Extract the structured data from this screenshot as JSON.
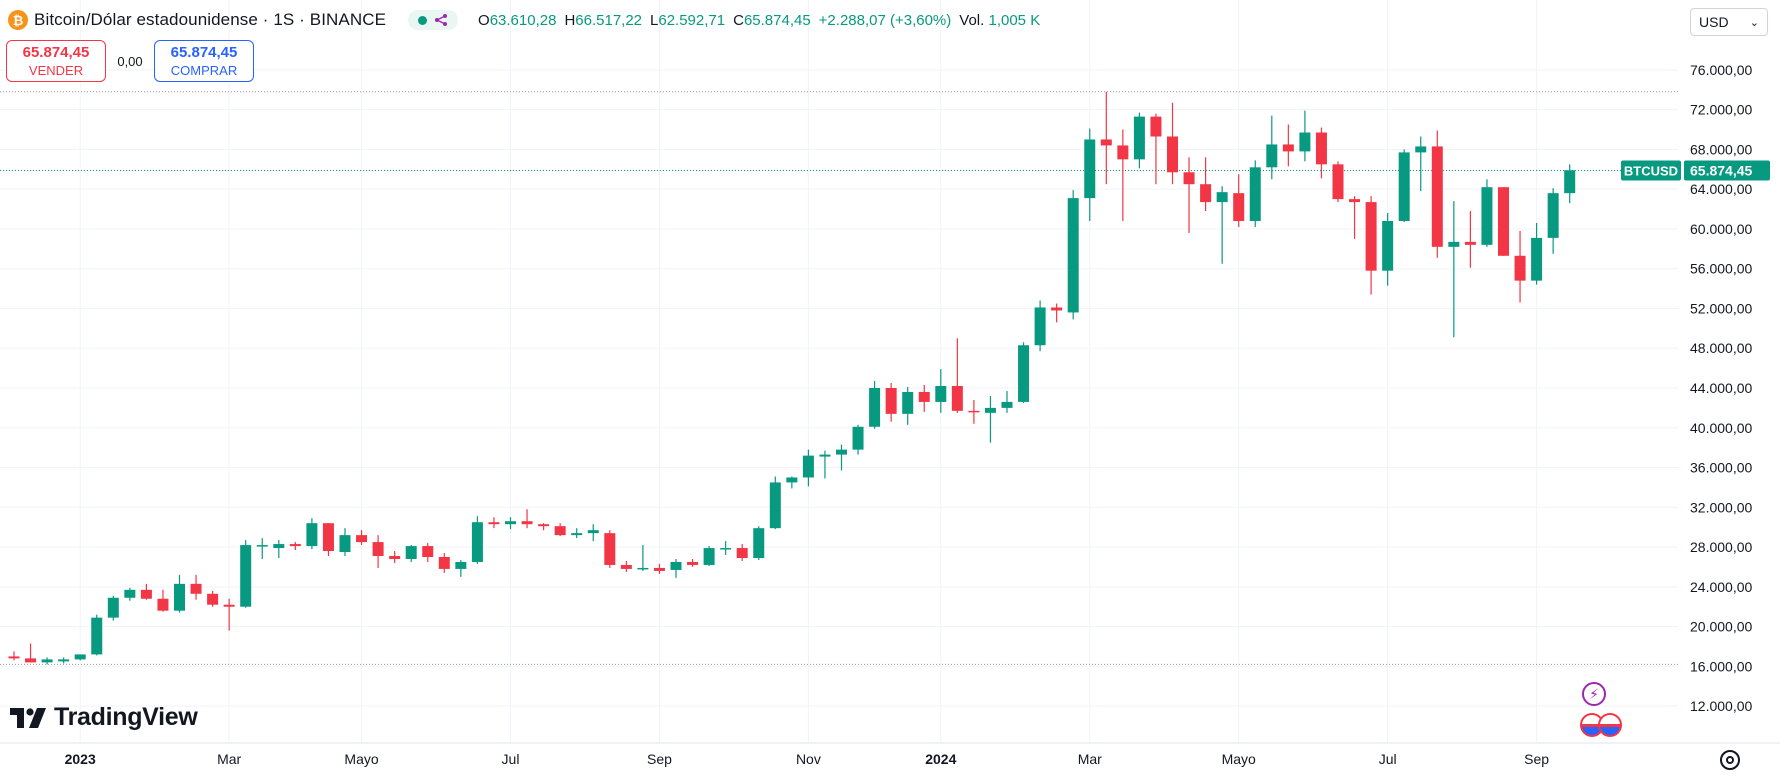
{
  "header": {
    "symbol_title": "Bitcoin/Dólar estadounidense · 1S · BINANCE",
    "btc_glyph": "₿",
    "ohlc": [
      {
        "key": "O",
        "value": "63.610,28"
      },
      {
        "key": "H",
        "value": "66.517,22"
      },
      {
        "key": "L",
        "value": "62.592,71"
      },
      {
        "key": "C",
        "value": "65.874,45"
      },
      {
        "key": "",
        "value": "+2.288,07 (+3,60%)"
      },
      {
        "key": "Vol.",
        "value": "1,005 K"
      }
    ]
  },
  "trade": {
    "sell_price": "65.874,45",
    "sell_label": "VENDER",
    "spread": "0,00",
    "buy_price": "65.874,45",
    "buy_label": "COMPRAR"
  },
  "currency": {
    "value": "USD"
  },
  "logo": {
    "text": "TradingView"
  },
  "price_tag": {
    "symbol": "BTCUSD",
    "value": "65.874,45"
  },
  "colors": {
    "up": "#089981",
    "down": "#f23645",
    "grid": "#f0f3fa",
    "text": "#131722",
    "accent": "#2962ff"
  },
  "chart_data": {
    "type": "candlestick",
    "title": "Bitcoin/Dólar estadounidense · 1S · BINANCE",
    "xlabel": "",
    "ylabel": "",
    "ylim": [
      10000,
      78000
    ],
    "y_ticks": [
      12000,
      16000,
      20000,
      24000,
      28000,
      32000,
      36000,
      40000,
      44000,
      48000,
      52000,
      56000,
      60000,
      64000,
      68000,
      72000,
      76000
    ],
    "y_tick_labels": [
      "12.000,00",
      "16.000,00",
      "20.000,00",
      "24.000,00",
      "28.000,00",
      "32.000,00",
      "36.000,00",
      "40.000,00",
      "44.000,00",
      "48.000,00",
      "52.000,00",
      "56.000,00",
      "60.000,00",
      "64.000,00",
      "68.000,00",
      "72.000,00",
      "76.000,00"
    ],
    "x_tick_labels": [
      {
        "label": "2023",
        "index": 4
      },
      {
        "label": "Mar",
        "index": 13
      },
      {
        "label": "Mayo",
        "index": 21
      },
      {
        "label": "Jul",
        "index": 30
      },
      {
        "label": "Sep",
        "index": 39
      },
      {
        "label": "Nov",
        "index": 48
      },
      {
        "label": "2024",
        "index": 56
      },
      {
        "label": "Mar",
        "index": 65
      },
      {
        "label": "Mayo",
        "index": 74
      },
      {
        "label": "Jul",
        "index": 83
      },
      {
        "label": "Sep",
        "index": 92
      }
    ],
    "reference_lines": [
      16200,
      73800
    ],
    "last_price": 65874.45,
    "candles": [
      {
        "o": 17000,
        "h": 17500,
        "l": 16600,
        "c": 16800
      },
      {
        "o": 16800,
        "h": 18300,
        "l": 16400,
        "c": 16400
      },
      {
        "o": 16400,
        "h": 16900,
        "l": 16200,
        "c": 16700
      },
      {
        "o": 16500,
        "h": 16900,
        "l": 16300,
        "c": 16700
      },
      {
        "o": 16700,
        "h": 17200,
        "l": 16600,
        "c": 17200
      },
      {
        "o": 17200,
        "h": 21200,
        "l": 17100,
        "c": 20900
      },
      {
        "o": 20900,
        "h": 23100,
        "l": 20600,
        "c": 22900
      },
      {
        "o": 22900,
        "h": 23900,
        "l": 22600,
        "c": 23700
      },
      {
        "o": 23700,
        "h": 24300,
        "l": 22700,
        "c": 22800
      },
      {
        "o": 22800,
        "h": 23700,
        "l": 21500,
        "c": 21600
      },
      {
        "o": 21600,
        "h": 25200,
        "l": 21400,
        "c": 24300
      },
      {
        "o": 24300,
        "h": 25200,
        "l": 22700,
        "c": 23300
      },
      {
        "o": 23300,
        "h": 23600,
        "l": 22000,
        "c": 22200
      },
      {
        "o": 22200,
        "h": 22800,
        "l": 19600,
        "c": 22000
      },
      {
        "o": 22000,
        "h": 28700,
        "l": 21900,
        "c": 28200
      },
      {
        "o": 28200,
        "h": 28900,
        "l": 26800,
        "c": 28200
      },
      {
        "o": 27900,
        "h": 28700,
        "l": 26900,
        "c": 28300
      },
      {
        "o": 28300,
        "h": 28500,
        "l": 27700,
        "c": 28100
      },
      {
        "o": 28100,
        "h": 30900,
        "l": 27800,
        "c": 30400
      },
      {
        "o": 30400,
        "h": 30400,
        "l": 27100,
        "c": 27600
      },
      {
        "o": 27500,
        "h": 29900,
        "l": 27100,
        "c": 29200
      },
      {
        "o": 29200,
        "h": 29700,
        "l": 28200,
        "c": 28500
      },
      {
        "o": 28500,
        "h": 29200,
        "l": 25900,
        "c": 27100
      },
      {
        "o": 27100,
        "h": 27600,
        "l": 26400,
        "c": 26800
      },
      {
        "o": 26800,
        "h": 28200,
        "l": 26500,
        "c": 28100
      },
      {
        "o": 28100,
        "h": 28400,
        "l": 26500,
        "c": 27000
      },
      {
        "o": 27000,
        "h": 27400,
        "l": 25400,
        "c": 25800
      },
      {
        "o": 25800,
        "h": 26700,
        "l": 25000,
        "c": 26500
      },
      {
        "o": 26500,
        "h": 31100,
        "l": 26300,
        "c": 30500
      },
      {
        "o": 30500,
        "h": 31000,
        "l": 29900,
        "c": 30300
      },
      {
        "o": 30300,
        "h": 31000,
        "l": 29800,
        "c": 30600
      },
      {
        "o": 30600,
        "h": 31800,
        "l": 29900,
        "c": 30300
      },
      {
        "o": 30300,
        "h": 30400,
        "l": 29700,
        "c": 30100
      },
      {
        "o": 30100,
        "h": 30400,
        "l": 29100,
        "c": 29200
      },
      {
        "o": 29200,
        "h": 29900,
        "l": 28900,
        "c": 29400
      },
      {
        "o": 29400,
        "h": 30300,
        "l": 28600,
        "c": 29700
      },
      {
        "o": 29400,
        "h": 29700,
        "l": 25900,
        "c": 26200
      },
      {
        "o": 26200,
        "h": 26600,
        "l": 25500,
        "c": 25800
      },
      {
        "o": 25900,
        "h": 28200,
        "l": 25600,
        "c": 25900
      },
      {
        "o": 25900,
        "h": 26300,
        "l": 25300,
        "c": 25600
      },
      {
        "o": 25700,
        "h": 26800,
        "l": 24900,
        "c": 26500
      },
      {
        "o": 26500,
        "h": 26800,
        "l": 26000,
        "c": 26200
      },
      {
        "o": 26200,
        "h": 28100,
        "l": 26100,
        "c": 27900
      },
      {
        "o": 27900,
        "h": 28600,
        "l": 27200,
        "c": 27900
      },
      {
        "o": 27900,
        "h": 28300,
        "l": 26600,
        "c": 26900
      },
      {
        "o": 26900,
        "h": 30100,
        "l": 26700,
        "c": 29900
      },
      {
        "o": 29900,
        "h": 35100,
        "l": 29800,
        "c": 34500
      },
      {
        "o": 34500,
        "h": 35100,
        "l": 33900,
        "c": 35000
      },
      {
        "o": 35000,
        "h": 37800,
        "l": 34100,
        "c": 37200
      },
      {
        "o": 37100,
        "h": 37700,
        "l": 34900,
        "c": 37300
      },
      {
        "o": 37300,
        "h": 38300,
        "l": 35700,
        "c": 37800
      },
      {
        "o": 37800,
        "h": 40300,
        "l": 37300,
        "c": 40100
      },
      {
        "o": 40100,
        "h": 44700,
        "l": 39900,
        "c": 44000
      },
      {
        "o": 44000,
        "h": 44500,
        "l": 40600,
        "c": 41400
      },
      {
        "o": 41400,
        "h": 44100,
        "l": 40300,
        "c": 43600
      },
      {
        "o": 43600,
        "h": 44300,
        "l": 41600,
        "c": 42600
      },
      {
        "o": 42600,
        "h": 45900,
        "l": 41500,
        "c": 44200
      },
      {
        "o": 44200,
        "h": 49000,
        "l": 41500,
        "c": 41700
      },
      {
        "o": 41700,
        "h": 42800,
        "l": 40400,
        "c": 41600
      },
      {
        "o": 41500,
        "h": 43200,
        "l": 38500,
        "c": 42000
      },
      {
        "o": 42000,
        "h": 43700,
        "l": 41500,
        "c": 42600
      },
      {
        "o": 42600,
        "h": 48600,
        "l": 42500,
        "c": 48300
      },
      {
        "o": 48300,
        "h": 52800,
        "l": 47700,
        "c": 52100
      },
      {
        "o": 52100,
        "h": 52500,
        "l": 50600,
        "c": 51800
      },
      {
        "o": 51600,
        "h": 63900,
        "l": 50900,
        "c": 63100
      },
      {
        "o": 63100,
        "h": 70100,
        "l": 60800,
        "c": 69000
      },
      {
        "o": 69000,
        "h": 73800,
        "l": 64500,
        "c": 68400
      },
      {
        "o": 68400,
        "h": 70000,
        "l": 60800,
        "c": 67000
      },
      {
        "o": 67000,
        "h": 71700,
        "l": 66100,
        "c": 71300
      },
      {
        "o": 71300,
        "h": 71600,
        "l": 64500,
        "c": 69300
      },
      {
        "o": 69300,
        "h": 72700,
        "l": 64500,
        "c": 65700
      },
      {
        "o": 65700,
        "h": 67200,
        "l": 59600,
        "c": 64500
      },
      {
        "o": 64500,
        "h": 67200,
        "l": 61800,
        "c": 62700
      },
      {
        "o": 62700,
        "h": 64300,
        "l": 56500,
        "c": 63700
      },
      {
        "o": 63600,
        "h": 65500,
        "l": 60200,
        "c": 60800
      },
      {
        "o": 60800,
        "h": 66900,
        "l": 60200,
        "c": 66200
      },
      {
        "o": 66200,
        "h": 71400,
        "l": 65000,
        "c": 68500
      },
      {
        "o": 68500,
        "h": 70500,
        "l": 66300,
        "c": 67800
      },
      {
        "o": 67800,
        "h": 71900,
        "l": 66800,
        "c": 69700
      },
      {
        "o": 69700,
        "h": 70200,
        "l": 65100,
        "c": 66500
      },
      {
        "o": 66500,
        "h": 66800,
        "l": 62700,
        "c": 63000
      },
      {
        "o": 63000,
        "h": 63300,
        "l": 59000,
        "c": 62700
      },
      {
        "o": 62700,
        "h": 63300,
        "l": 53400,
        "c": 55800
      },
      {
        "o": 55800,
        "h": 61600,
        "l": 54300,
        "c": 60800
      },
      {
        "o": 60800,
        "h": 68000,
        "l": 60700,
        "c": 67700
      },
      {
        "o": 67700,
        "h": 69300,
        "l": 63800,
        "c": 68300
      },
      {
        "o": 68300,
        "h": 69900,
        "l": 57100,
        "c": 58200
      },
      {
        "o": 58200,
        "h": 62800,
        "l": 49100,
        "c": 58700
      },
      {
        "o": 58700,
        "h": 61800,
        "l": 56100,
        "c": 58400
      },
      {
        "o": 58400,
        "h": 65000,
        "l": 58200,
        "c": 64200
      },
      {
        "o": 64200,
        "h": 64200,
        "l": 57300,
        "c": 57300
      },
      {
        "o": 57300,
        "h": 59800,
        "l": 52600,
        "c": 54800
      },
      {
        "o": 54800,
        "h": 60600,
        "l": 54400,
        "c": 59100
      },
      {
        "o": 59100,
        "h": 64100,
        "l": 57500,
        "c": 63600
      },
      {
        "o": 63600,
        "h": 66500,
        "l": 62600,
        "c": 65900
      }
    ]
  }
}
